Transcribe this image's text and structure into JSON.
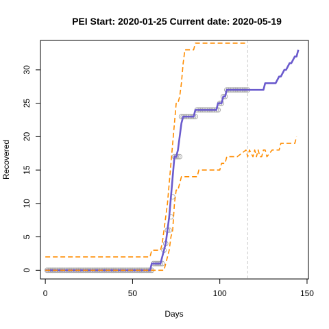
{
  "chart_data": {
    "type": "line",
    "title": "PEI Start:  2020-01-25   Current date:  2020-05-19",
    "xlabel": "Days",
    "ylabel": "Recovered",
    "xlim": [
      -2.8,
      150.8
    ],
    "ylim": [
      -1.3,
      34.4
    ],
    "xticks": [
      0,
      50,
      100,
      150
    ],
    "yticks": [
      0,
      5,
      10,
      15,
      20,
      25,
      30
    ],
    "grid": false,
    "current_day_marker": 116,
    "colors": {
      "observed": "#aaaaaa",
      "fit": "#6a5acd",
      "band": "#ff8c00",
      "marker": "#cccccc"
    },
    "series": [
      {
        "style": "points",
        "x": [
          1,
          2,
          3,
          4,
          5,
          6,
          7,
          8,
          9,
          10,
          11,
          12,
          13,
          14,
          15,
          16,
          17,
          18,
          19,
          20,
          21,
          22,
          23,
          24,
          25,
          26,
          27,
          28,
          29,
          30,
          31,
          32,
          33,
          34,
          35,
          36,
          37,
          38,
          39,
          40,
          41,
          42,
          43,
          44,
          45,
          46,
          47,
          48,
          49,
          50,
          51,
          52,
          53,
          54,
          55,
          56,
          57,
          58,
          59,
          60,
          61,
          62,
          63,
          64,
          65,
          66,
          67,
          68,
          69,
          70,
          71,
          72,
          73,
          74,
          75,
          76,
          77,
          78,
          79,
          80,
          81,
          82,
          83,
          84,
          85,
          86,
          87,
          88,
          89,
          90,
          91,
          92,
          93,
          94,
          95,
          96,
          97,
          98,
          99,
          100,
          101,
          102,
          103,
          104,
          105,
          106,
          107,
          108,
          109,
          110,
          111,
          112,
          113,
          114,
          115,
          116
        ],
        "y": [
          0,
          0,
          0,
          0,
          0,
          0,
          0,
          0,
          0,
          0,
          0,
          0,
          0,
          0,
          0,
          0,
          0,
          0,
          0,
          0,
          0,
          0,
          0,
          0,
          0,
          0,
          0,
          0,
          0,
          0,
          0,
          0,
          0,
          0,
          0,
          0,
          0,
          0,
          0,
          0,
          0,
          0,
          0,
          0,
          0,
          0,
          0,
          0,
          0,
          0,
          0,
          0,
          0,
          0,
          0,
          0,
          0,
          0,
          0,
          0,
          0,
          1,
          1,
          1,
          1,
          1,
          1,
          3,
          4,
          6,
          6,
          8,
          11,
          17,
          17,
          17,
          17,
          23,
          23,
          23,
          23,
          23,
          23,
          23,
          23,
          23,
          24,
          24,
          24,
          24,
          24,
          24,
          24,
          24,
          24,
          24,
          24,
          24,
          24,
          25,
          25,
          26,
          26,
          27,
          27,
          27,
          27,
          27,
          27,
          27,
          27,
          27,
          27,
          27,
          27,
          27
        ]
      },
      {
        "style": "solid",
        "x": [
          0,
          60,
          61,
          62,
          66,
          67,
          68,
          69,
          70,
          71,
          72,
          73,
          74,
          75,
          76,
          77,
          78,
          79,
          80,
          85,
          86,
          87,
          88,
          95,
          96,
          98,
          99,
          100,
          101,
          102,
          103,
          104,
          105,
          106,
          110,
          115,
          125,
          126,
          131,
          132,
          134,
          135,
          137,
          138,
          140,
          141,
          143,
          144,
          145
        ],
        "y": [
          0,
          0,
          1,
          1,
          1,
          2,
          3,
          4,
          6,
          8,
          11,
          14,
          17,
          17,
          18,
          20,
          22,
          23,
          23,
          23,
          24,
          24,
          24,
          24,
          24,
          24,
          25,
          25,
          25,
          26,
          26,
          27,
          27,
          27,
          27,
          27,
          27,
          28,
          28,
          28,
          29,
          29,
          30,
          30,
          31,
          31,
          32,
          32,
          33
        ]
      },
      {
        "style": "dashed",
        "x": [
          0,
          60,
          61,
          62,
          66,
          67,
          68,
          69,
          70,
          71,
          72,
          73,
          74,
          75,
          76,
          77,
          78,
          79,
          80,
          85,
          86,
          87,
          88,
          95,
          96,
          98,
          99,
          100,
          101,
          102,
          103,
          104,
          105,
          106,
          110,
          115
        ],
        "y": [
          2,
          2,
          3,
          3,
          3,
          4,
          6,
          8,
          10,
          13,
          16,
          19,
          22,
          25,
          25,
          26,
          28,
          31,
          33,
          33,
          34,
          34,
          34,
          34,
          34,
          34,
          34,
          34,
          34,
          34,
          34,
          34,
          34,
          34,
          34,
          34
        ]
      },
      {
        "style": "dashed",
        "x": [
          0,
          60,
          61,
          62,
          66,
          67,
          68,
          69,
          70,
          71,
          72,
          73,
          74,
          75,
          76,
          77,
          78,
          79,
          80,
          85,
          86,
          87,
          88,
          95,
          96,
          98,
          99,
          100,
          101,
          102,
          103,
          104,
          105,
          106,
          110,
          115,
          116,
          117,
          119,
          120,
          121,
          122,
          123,
          124,
          125,
          126,
          127,
          130,
          131,
          134,
          135,
          138,
          139,
          140,
          141,
          143,
          144
        ],
        "y": [
          0,
          0,
          0,
          0,
          0,
          0,
          0,
          1,
          2,
          3,
          5,
          6,
          10,
          12,
          12,
          13,
          14,
          14,
          14,
          14,
          14,
          14,
          15,
          15,
          15,
          15,
          15,
          15,
          16,
          16,
          16,
          17,
          17,
          17,
          17,
          18,
          17,
          18,
          17,
          18,
          17,
          18,
          17,
          17,
          18,
          18,
          17,
          18,
          18,
          18,
          19,
          19,
          19,
          19,
          19,
          19,
          20
        ]
      }
    ]
  }
}
